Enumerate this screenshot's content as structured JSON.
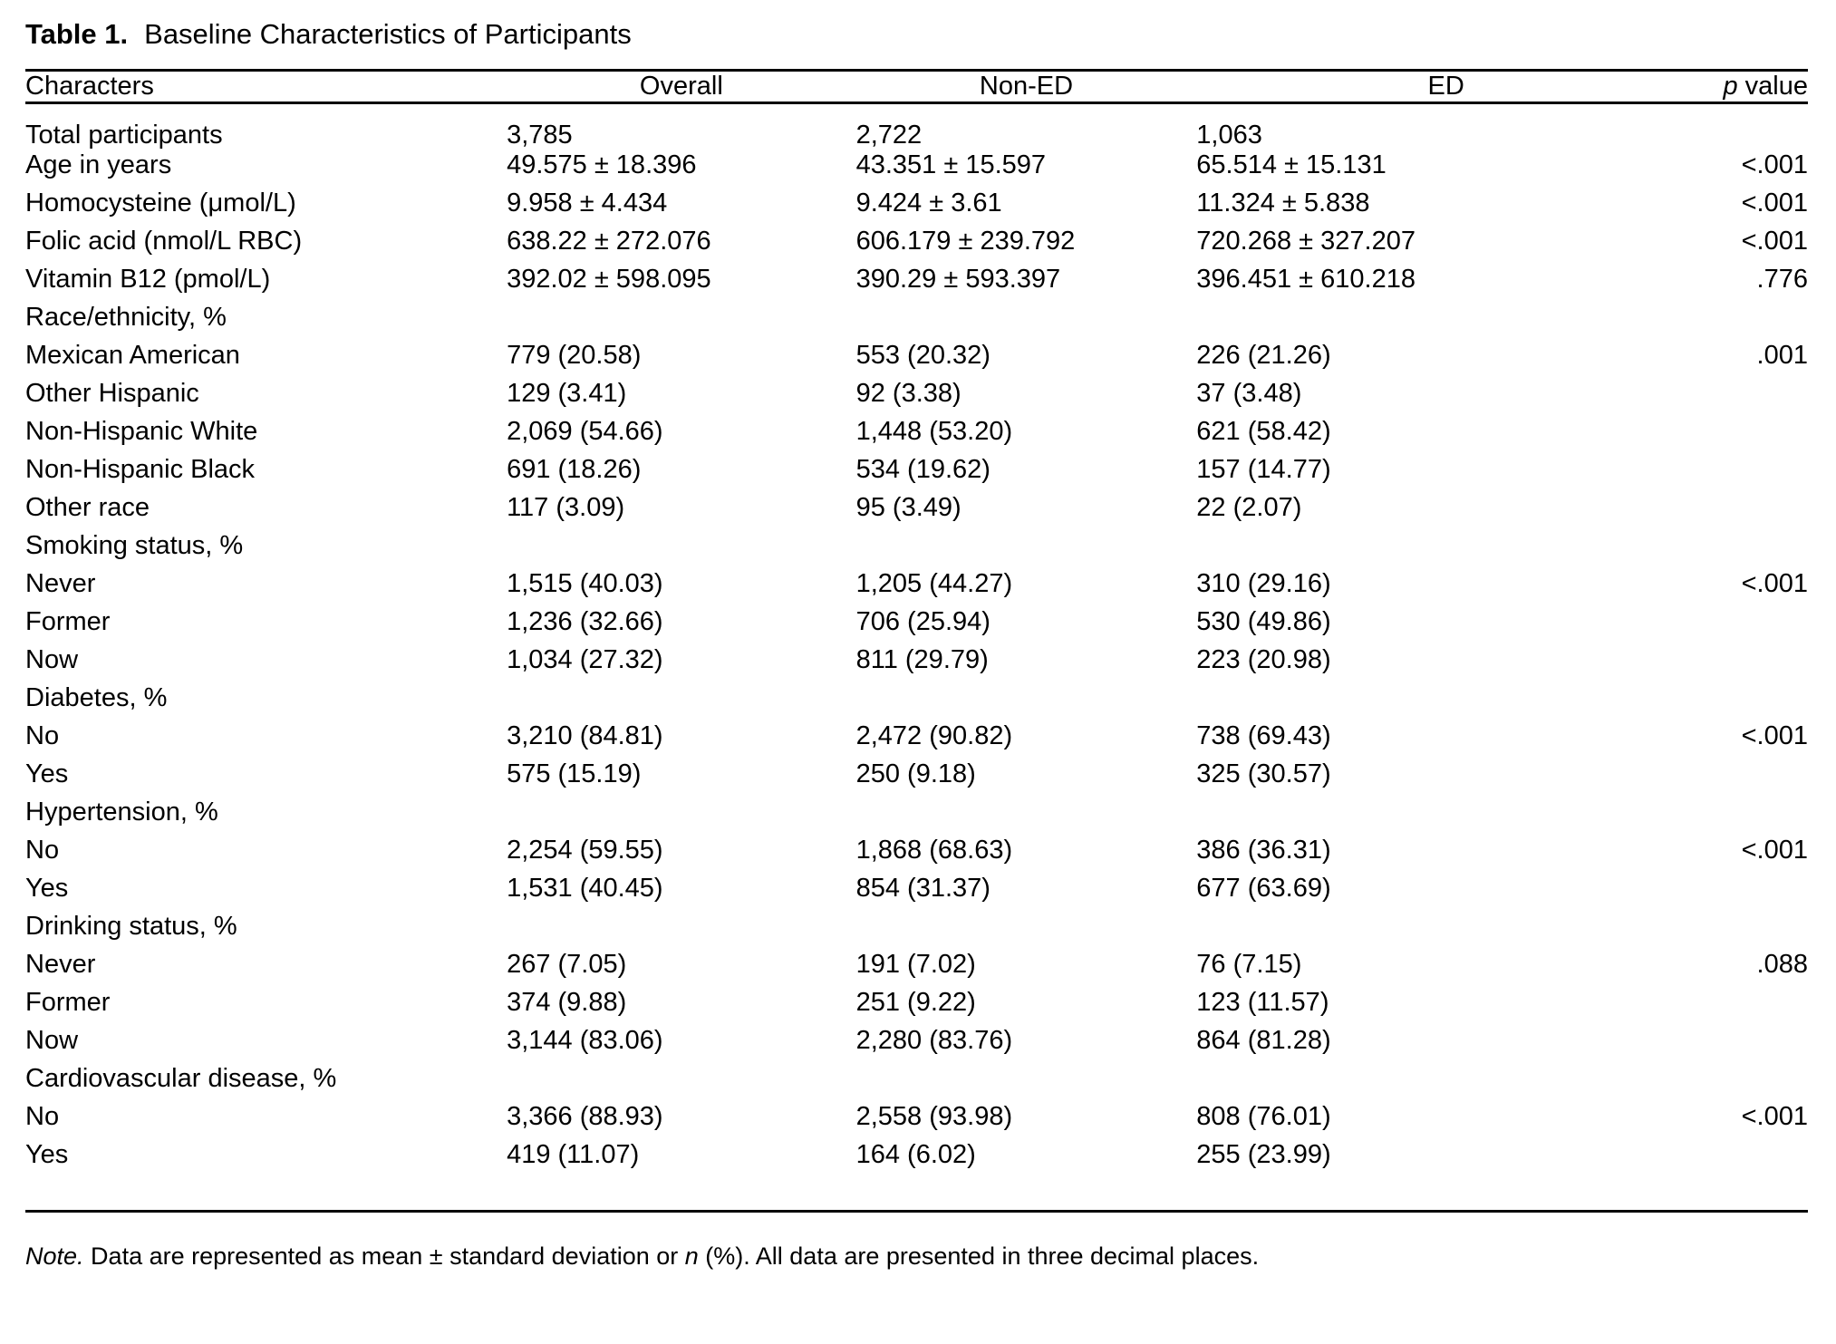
{
  "caption": {
    "label": "Table 1.",
    "title": "Baseline Characteristics of Participants"
  },
  "header": {
    "characters": "Characters",
    "overall": "Overall",
    "non_ed": "Non-ED",
    "ed": "ED",
    "p_symbol": "p",
    "p_rest": " value"
  },
  "table": {
    "rows": [
      {
        "label": "Total participants",
        "overall": "3,785",
        "non_ed": "2,722",
        "ed": "1,063",
        "p": ""
      },
      {
        "label": "Age in years",
        "overall": "49.575 ± 18.396",
        "non_ed": "43.351 ± 15.597",
        "ed": "65.514 ± 15.131",
        "p": "<.001"
      },
      {
        "label": "Homocysteine (μmol/L)",
        "overall": "9.958 ± 4.434",
        "non_ed": "9.424 ± 3.61",
        "ed": "11.324 ± 5.838",
        "p": "<.001"
      },
      {
        "label": "Folic acid (nmol/L RBC)",
        "overall": "638.22 ± 272.076",
        "non_ed": "606.179 ± 239.792",
        "ed": "720.268 ± 327.207",
        "p": "<.001"
      },
      {
        "label": "Vitamin B12 (pmol/L)",
        "overall": "392.02 ± 598.095",
        "non_ed": "390.29 ± 593.397",
        "ed": "396.451 ± 610.218",
        "p": ".776"
      },
      {
        "label": "Race/ethnicity, %",
        "overall": "",
        "non_ed": "",
        "ed": "",
        "p": "",
        "section": true
      },
      {
        "label": "Mexican American",
        "overall": "779 (20.58)",
        "non_ed": "553 (20.32)",
        "ed": "226 (21.26)",
        "p": ".001"
      },
      {
        "label": "Other Hispanic",
        "overall": "129 (3.41)",
        "non_ed": "92 (3.38)",
        "ed": "37 (3.48)",
        "p": ""
      },
      {
        "label": "Non-Hispanic White",
        "overall": "2,069 (54.66)",
        "non_ed": "1,448 (53.20)",
        "ed": "621 (58.42)",
        "p": ""
      },
      {
        "label": "Non-Hispanic Black",
        "overall": "691 (18.26)",
        "non_ed": "534 (19.62)",
        "ed": "157 (14.77)",
        "p": ""
      },
      {
        "label": "Other race",
        "overall": "117 (3.09)",
        "non_ed": "95 (3.49)",
        "ed": "22 (2.07)",
        "p": ""
      },
      {
        "label": "Smoking status, %",
        "overall": "",
        "non_ed": "",
        "ed": "",
        "p": "",
        "section": true
      },
      {
        "label": "Never",
        "overall": "1,515 (40.03)",
        "non_ed": "1,205 (44.27)",
        "ed": "310 (29.16)",
        "p": "<.001"
      },
      {
        "label": "Former",
        "overall": "1,236 (32.66)",
        "non_ed": "706 (25.94)",
        "ed": "530 (49.86)",
        "p": ""
      },
      {
        "label": "Now",
        "overall": "1,034 (27.32)",
        "non_ed": "811 (29.79)",
        "ed": "223 (20.98)",
        "p": ""
      },
      {
        "label": "Diabetes, %",
        "overall": "",
        "non_ed": "",
        "ed": "",
        "p": "",
        "section": true
      },
      {
        "label": "No",
        "overall": "3,210 (84.81)",
        "non_ed": "2,472 (90.82)",
        "ed": "738 (69.43)",
        "p": "<.001"
      },
      {
        "label": "Yes",
        "overall": "575 (15.19)",
        "non_ed": "250 (9.18)",
        "ed": "325 (30.57)",
        "p": ""
      },
      {
        "label": "Hypertension, %",
        "overall": "",
        "non_ed": "",
        "ed": "",
        "p": "",
        "section": true
      },
      {
        "label": "No",
        "overall": "2,254 (59.55)",
        "non_ed": "1,868 (68.63)",
        "ed": "386 (36.31)",
        "p": "<.001"
      },
      {
        "label": "Yes",
        "overall": "1,531 (40.45)",
        "non_ed": "854 (31.37)",
        "ed": "677 (63.69)",
        "p": ""
      },
      {
        "label": "Drinking status, %",
        "overall": "",
        "non_ed": "",
        "ed": "",
        "p": "",
        "section": true
      },
      {
        "label": "Never",
        "overall": "267 (7.05)",
        "non_ed": "191 (7.02)",
        "ed": "76 (7.15)",
        "p": ".088"
      },
      {
        "label": "Former",
        "overall": "374 (9.88)",
        "non_ed": "251 (9.22)",
        "ed": "123 (11.57)",
        "p": ""
      },
      {
        "label": "Now",
        "overall": "3,144 (83.06)",
        "non_ed": "2,280 (83.76)",
        "ed": "864 (81.28)",
        "p": ""
      },
      {
        "label": "Cardiovascular disease, %",
        "overall": "",
        "non_ed": "",
        "ed": "",
        "p": "",
        "section": true
      },
      {
        "label": "No",
        "overall": "3,366 (88.93)",
        "non_ed": "2,558 (93.98)",
        "ed": "808 (76.01)",
        "p": "<.001"
      },
      {
        "label": "Yes",
        "overall": "419 (11.07)",
        "non_ed": "164 (6.02)",
        "ed": "255 (23.99)",
        "p": ""
      }
    ]
  },
  "note": {
    "prefix": "Note.",
    "body1": " Data are represented as mean ± standard deviation or ",
    "n_symbol": "n",
    "body2": " (%). All data are presented in three decimal places."
  }
}
